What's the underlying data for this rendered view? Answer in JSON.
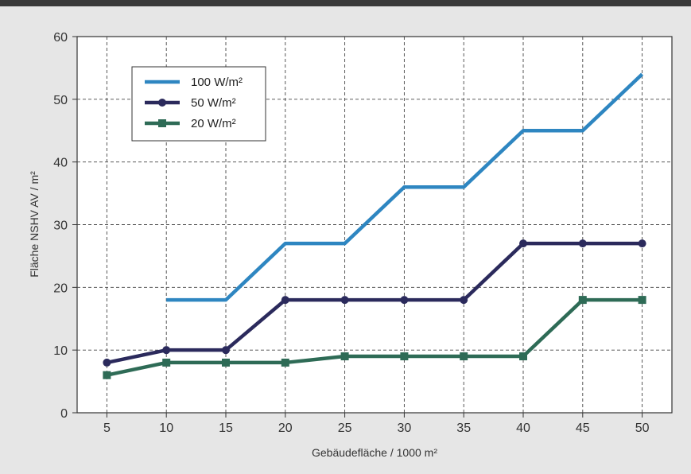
{
  "chart_data": {
    "type": "line",
    "title": "",
    "xlabel": "Gebäudefläche / 1000 m²",
    "ylabel": "Fläche NSHV AV / m²",
    "x": [
      5,
      10,
      15,
      20,
      25,
      30,
      35,
      40,
      45,
      50
    ],
    "xlim": [
      2.5,
      52.5
    ],
    "ylim": [
      0,
      60
    ],
    "xticks": [
      "5",
      "10",
      "15",
      "20",
      "25",
      "30",
      "35",
      "40",
      "45",
      "50"
    ],
    "yticks": [
      "0",
      "10",
      "20",
      "30",
      "40",
      "50",
      "60"
    ],
    "grid": true,
    "legend_position": "top-left",
    "series": [
      {
        "name": "100 W/m²",
        "color": "#2e86c1",
        "marker": "none",
        "values": [
          null,
          18,
          18,
          27,
          27,
          36,
          36,
          45,
          45,
          54
        ]
      },
      {
        "name": "50 W/m²",
        "color": "#2b2a5c",
        "marker": "circle",
        "values": [
          8,
          10,
          10,
          18,
          18,
          18,
          18,
          27,
          27,
          27
        ]
      },
      {
        "name": "20 W/m²",
        "color": "#2e6b56",
        "marker": "square",
        "values": [
          6,
          8,
          8,
          8,
          9,
          9,
          9,
          9,
          18,
          18
        ]
      }
    ]
  }
}
